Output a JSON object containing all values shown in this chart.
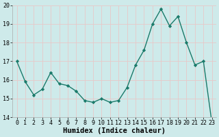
{
  "x": [
    0,
    1,
    2,
    3,
    4,
    5,
    6,
    7,
    8,
    9,
    10,
    11,
    12,
    13,
    14,
    15,
    16,
    17,
    18,
    19,
    20,
    21,
    22,
    23
  ],
  "y": [
    17.0,
    15.9,
    15.2,
    15.5,
    16.4,
    15.8,
    15.7,
    15.4,
    14.9,
    14.8,
    15.0,
    14.8,
    14.9,
    15.6,
    16.8,
    17.6,
    19.0,
    19.8,
    18.9,
    19.4,
    18.0,
    16.8,
    17.0,
    13.7
  ],
  "line_color": "#1a7a6a",
  "marker": "D",
  "marker_size": 2.2,
  "bg_color": "#ceeaea",
  "grid_color": "#e8c8c8",
  "xlabel": "Humidex (Indice chaleur)",
  "ylim": [
    14,
    20
  ],
  "xlim": [
    -0.5,
    23.5
  ],
  "yticks": [
    14,
    15,
    16,
    17,
    18,
    19,
    20
  ],
  "xticks": [
    0,
    1,
    2,
    3,
    4,
    5,
    6,
    7,
    8,
    9,
    10,
    11,
    12,
    13,
    14,
    15,
    16,
    17,
    18,
    19,
    20,
    21,
    22,
    23
  ],
  "tick_fontsize": 6,
  "xlabel_fontsize": 7.5,
  "linewidth": 1.0
}
